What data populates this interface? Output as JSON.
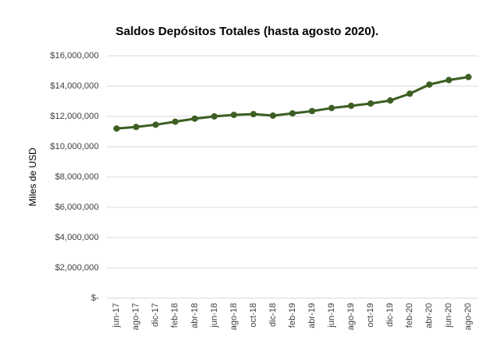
{
  "chart_data": {
    "type": "line",
    "title": "Saldos Depósitos Totales (hasta agosto 2020).",
    "y_axis_label": "Miles de USD",
    "categories": [
      "jun-17",
      "ago-17",
      "dic-17",
      "feb-18",
      "abr-18",
      "jun-18",
      "ago-18",
      "oct-18",
      "dic-18",
      "feb-19",
      "abr-19",
      "jun-19",
      "ago-19",
      "oct-19",
      "dic-19",
      "feb-20",
      "abr-20",
      "jun-20",
      "ago-20"
    ],
    "series": [
      {
        "name": "Saldos Depósitos Totales",
        "color": "#3d5f23",
        "values": [
          11200000,
          11300000,
          11450000,
          11650000,
          11850000,
          12000000,
          12100000,
          12150000,
          12050000,
          12200000,
          12350000,
          12550000,
          12700000,
          12850000,
          13050000,
          13500000,
          14100000,
          14400000,
          14600000
        ]
      }
    ],
    "ylim": [
      0,
      16000000
    ],
    "yticks": [
      {
        "value": 0,
        "label": "$-"
      },
      {
        "value": 2000000,
        "label": "$2,000,000"
      },
      {
        "value": 4000000,
        "label": "$4,000,000"
      },
      {
        "value": 6000000,
        "label": "$6,000,000"
      },
      {
        "value": 8000000,
        "label": "$8,000,000"
      },
      {
        "value": 10000000,
        "label": "$10,000,000"
      },
      {
        "value": 12000000,
        "label": "$12,000,000"
      },
      {
        "value": 14000000,
        "label": "$14,000,000"
      },
      {
        "value": 16000000,
        "label": "$16,000,000"
      }
    ],
    "grid": true
  }
}
